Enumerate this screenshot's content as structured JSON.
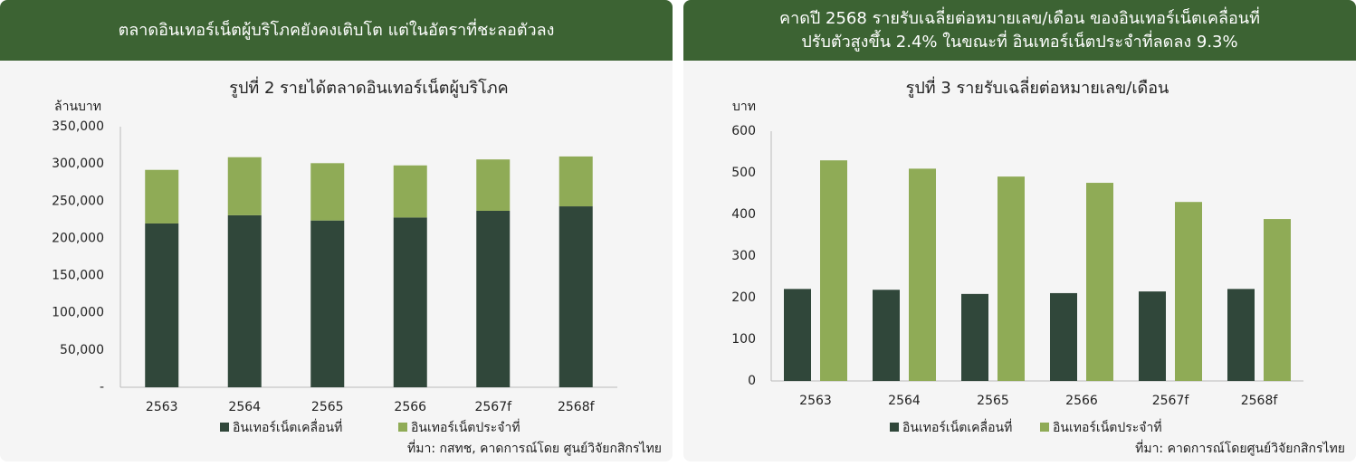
{
  "chart_data": [
    {
      "type": "bar",
      "stacked": true,
      "header": [
        "ตลาดอินเทอร์เน็ตผู้บริโภคยังคงเติบโต แต่ในอัตราที่ชะลอตัวลง"
      ],
      "title": "รูปที่ 2 รายได้ตลาดอินเทอร์เน็ตผู้บริโภค",
      "ylabel": "ล้านบาท",
      "categories": [
        "2563",
        "2564",
        "2565",
        "2566",
        "2567f",
        "2568f"
      ],
      "series": [
        {
          "name": "อินเทอร์เน็ตเคลื่อนที่",
          "color": "#30473a",
          "values": [
            220000,
            231000,
            224000,
            228000,
            237000,
            243000
          ]
        },
        {
          "name": "อินเทอร์เน็ตประจำที่",
          "color": "#8fab56",
          "values": [
            72000,
            78000,
            77000,
            70000,
            69000,
            67000
          ]
        }
      ],
      "ylim": [
        0,
        350000
      ],
      "yticks": [
        {
          "value": 0,
          "label": "-"
        },
        {
          "value": 50000,
          "label": "50,000"
        },
        {
          "value": 100000,
          "label": "100,000"
        },
        {
          "value": 150000,
          "label": "150,000"
        },
        {
          "value": 200000,
          "label": "200,000"
        },
        {
          "value": 250000,
          "label": "250,000"
        },
        {
          "value": 300000,
          "label": "300,000"
        },
        {
          "value": 350000,
          "label": "350,000"
        }
      ],
      "source": "ที่มา: กสทช, คาดการณ์โดย ศูนย์วิจัยกสิกรไทย"
    },
    {
      "type": "bar",
      "stacked": false,
      "header": [
        "คาดปี 2568 รายรับเฉลี่ยต่อหมายเลข/เดือน ของอินเทอร์เน็ตเคลื่อนที่",
        "ปรับตัวสูงขึ้น 2.4% ในขณะที่ อินเทอร์เน็ตประจำที่ลดลง 9.3%"
      ],
      "title": "รูปที่ 3 รายรับเฉลี่ยต่อหมายเลข/เดือน",
      "ylabel": "บาท",
      "categories": [
        "2563",
        "2564",
        "2565",
        "2566",
        "2567f",
        "2568f"
      ],
      "series": [
        {
          "name": "อินเทอร์เน็ตเคลื่อนที่",
          "color": "#30473a",
          "values": [
            221,
            219,
            209,
            211,
            215,
            221
          ]
        },
        {
          "name": "อินเทอร์เน็ตประจำที่",
          "color": "#8fab56",
          "values": [
            530,
            510,
            491,
            476,
            430,
            389
          ]
        }
      ],
      "ylim": [
        0,
        600
      ],
      "yticks": [
        0,
        100,
        200,
        300,
        400,
        500,
        600
      ],
      "source": "ที่มา: คาดการณ์โดยศูนย์วิจัยกสิกรไทย"
    }
  ]
}
